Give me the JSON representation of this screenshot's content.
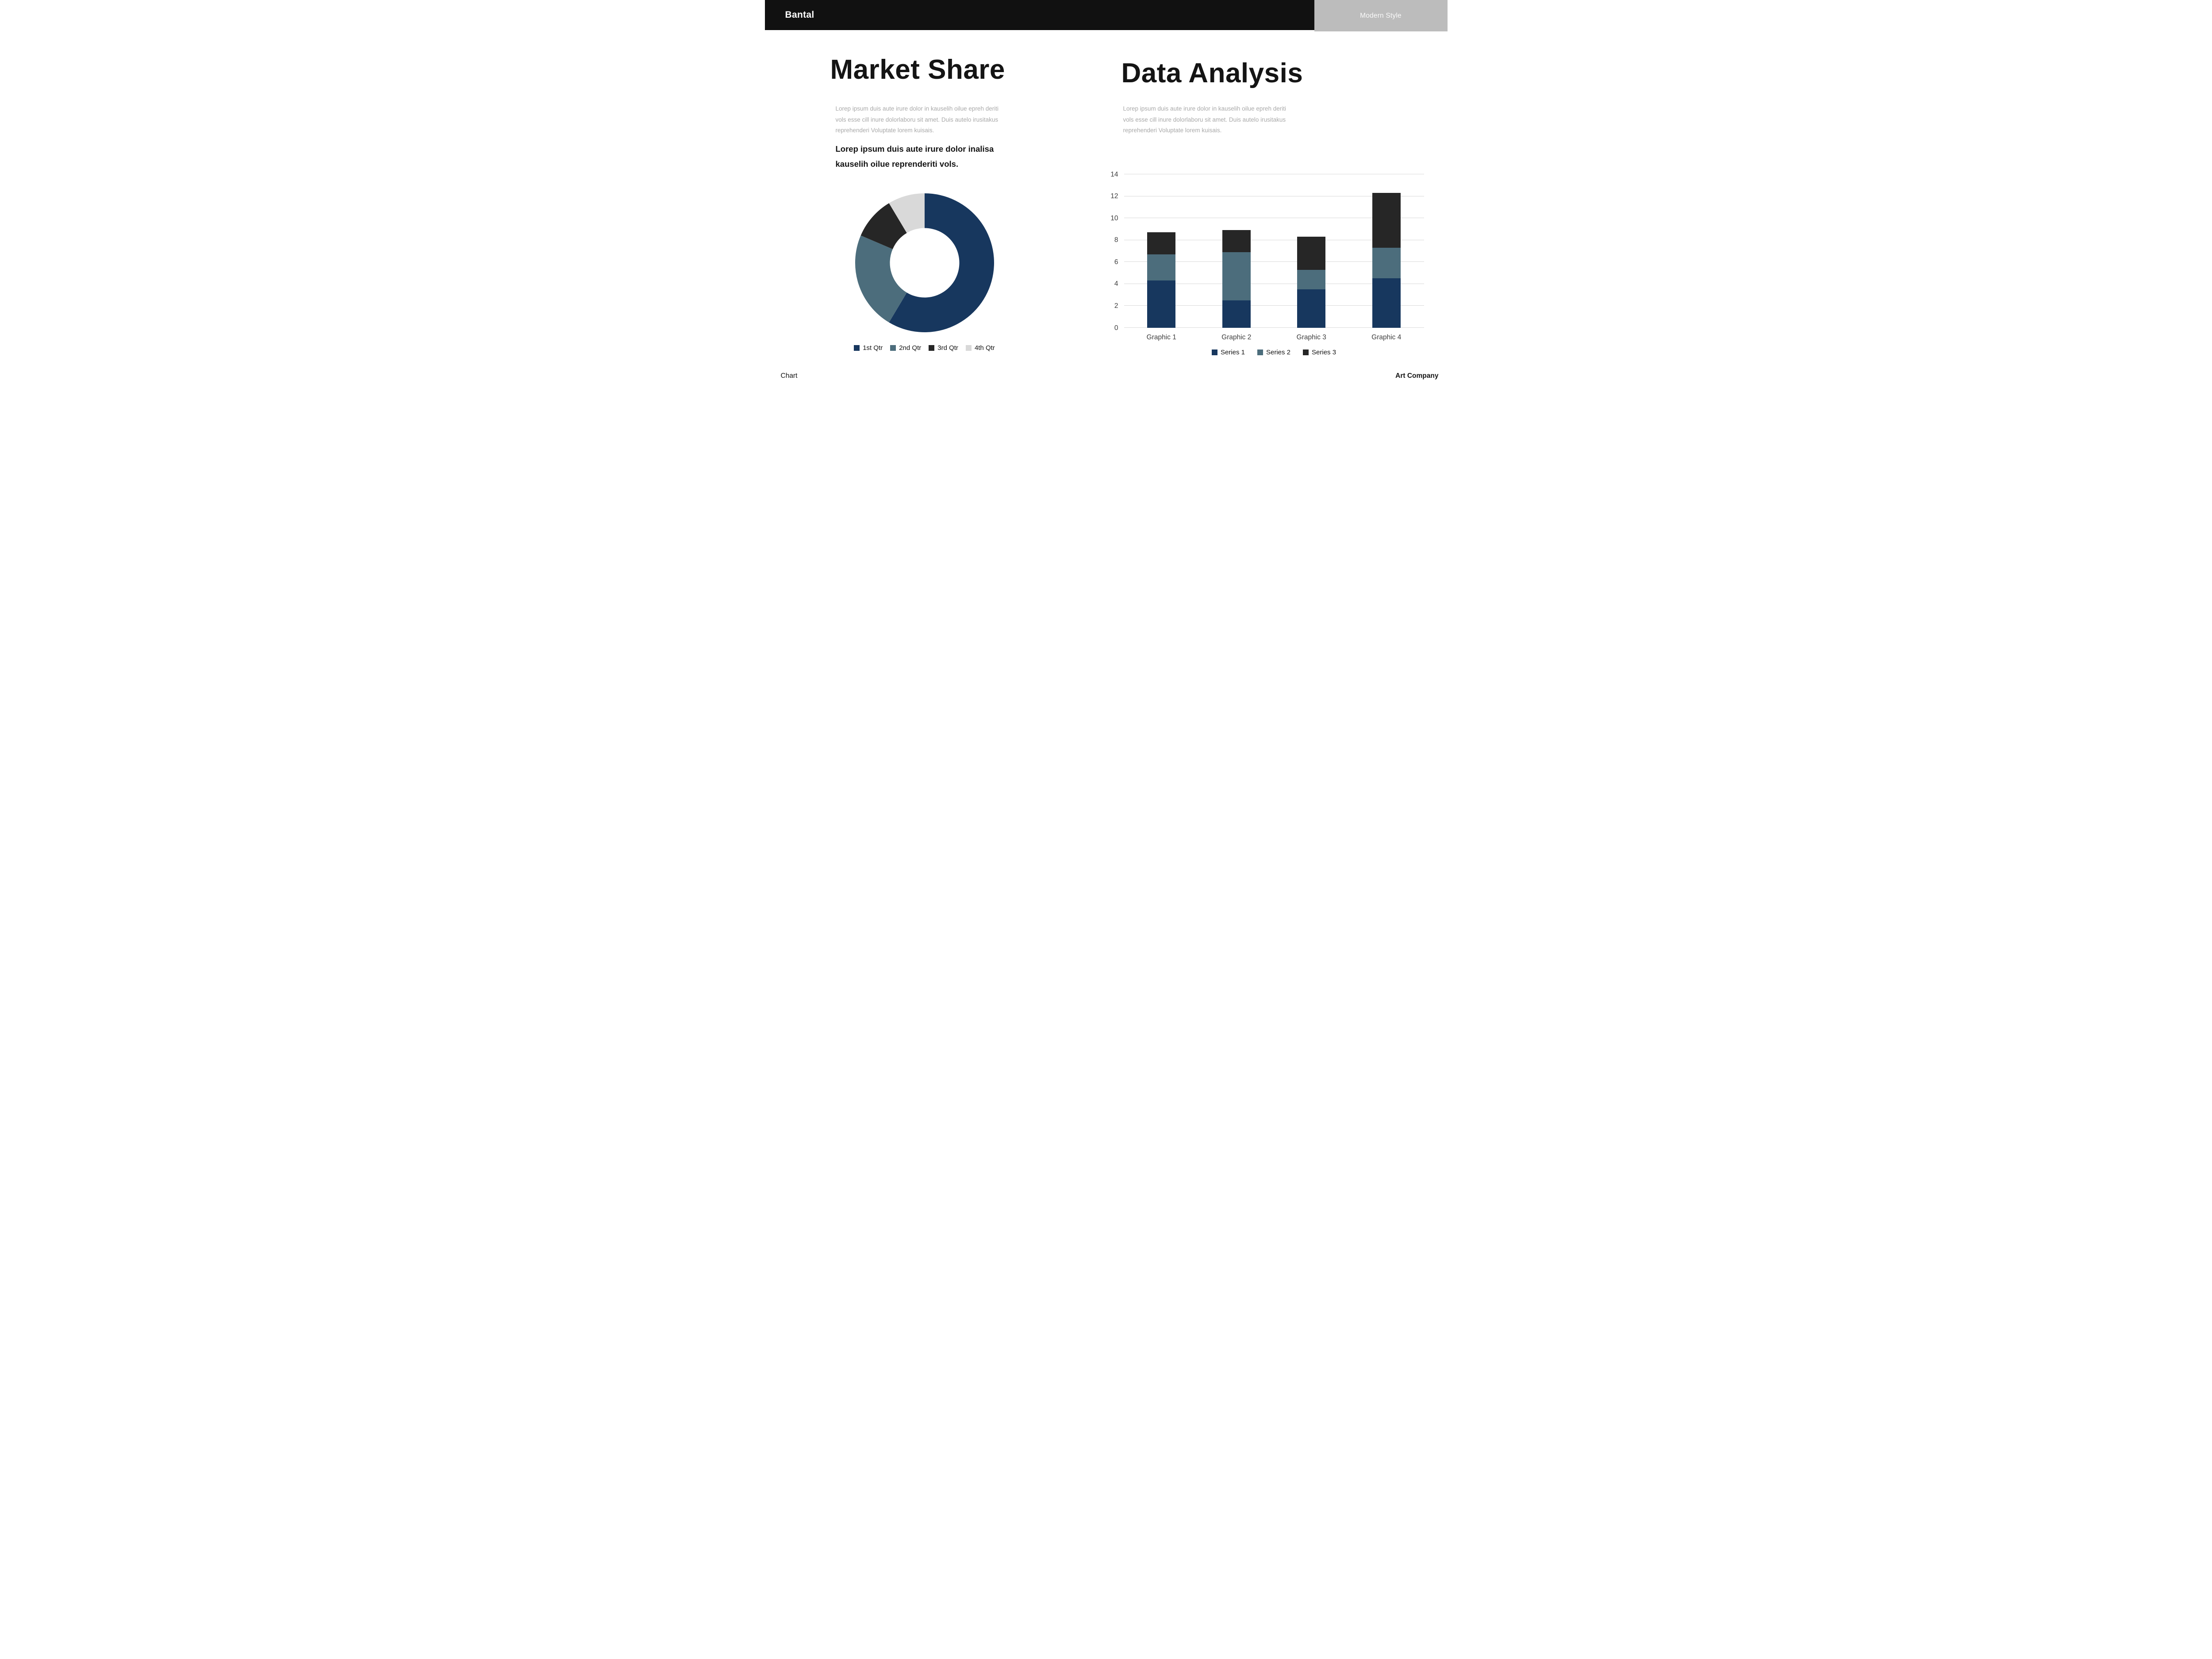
{
  "header": {
    "brand": "Bantal",
    "badge": "Modern Style"
  },
  "left": {
    "title": "Market Share",
    "paragraph": "Lorep  ipsum duis aute irure dolor in kauselih oilue epreh deriti vols esse cill inure dolorlaboru sit amet. Duis autelo irusitakus reprehenderi Voluptate lorem kuisais.",
    "highlight": "Lorep  ipsum duis aute irure dolor inalisa kauselih oilue reprenderiti vols."
  },
  "right": {
    "title": "Data Analysis",
    "paragraph": "Lorep  ipsum duis aute irure dolor in kauselih oilue epreh deriti vols esse cill inure dolorlaboru sit amet. Duis autelo irusitakus reprehenderi Voluptate lorem kuisais."
  },
  "footer": {
    "left": "Chart",
    "right": "Art Company"
  },
  "colors": {
    "header_black": "#111111",
    "badge_gray": "#bcbcbc",
    "navy": "#17375e",
    "teal": "#4c6d7c",
    "dark": "#262626",
    "light_gray": "#d9d9d9",
    "grid": "#d9d9d9"
  },
  "chart_data": [
    {
      "type": "pie",
      "subtype": "donut",
      "title": "Market Share",
      "labels": [
        "1st Qtr",
        "2nd Qtr",
        "3rd Qtr",
        "4th Qtr"
      ],
      "values": [
        8.2,
        3.2,
        1.4,
        1.2
      ],
      "colors": [
        "#17375e",
        "#4c6d7c",
        "#262626",
        "#d9d9d9"
      ],
      "hole_ratio": 0.5,
      "start_angle_deg": -90,
      "direction": "clockwise",
      "legend_position": "bottom"
    },
    {
      "type": "bar",
      "subtype": "stacked",
      "title": "Data Analysis",
      "categories": [
        "Graphic 1",
        "Graphic 2",
        "Graphic 3",
        "Graphic 4"
      ],
      "series": [
        {
          "name": "Series 1",
          "values": [
            4.3,
            2.5,
            3.5,
            4.5
          ],
          "color": "#17375e"
        },
        {
          "name": "Series 2",
          "values": [
            2.4,
            4.4,
            1.8,
            2.8
          ],
          "color": "#4c6d7c"
        },
        {
          "name": "Series 3",
          "values": [
            2.0,
            2.0,
            3.0,
            5.0
          ],
          "color": "#262626"
        }
      ],
      "ylim": [
        0,
        14
      ],
      "ytick_step": 2,
      "grid": true,
      "legend_position": "bottom"
    }
  ]
}
